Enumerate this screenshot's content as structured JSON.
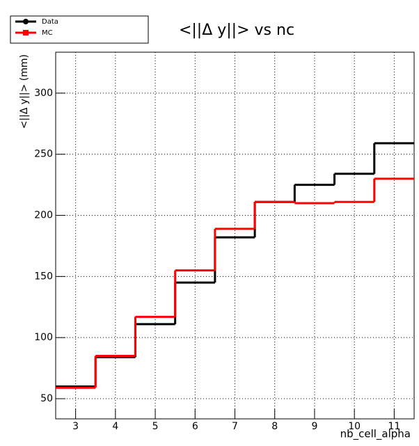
{
  "chart_data": {
    "type": "histogram",
    "title": "<||Δ y||> vs nc",
    "x_label": "nb_cell_alpha",
    "y_label": "<||Δ y||> (mm)",
    "bins": [
      2.5,
      3.5,
      4.5,
      5.5,
      6.5,
      7.5,
      8.5,
      9.5,
      10.5,
      11.5
    ],
    "series": [
      {
        "name": "Data",
        "color": "#000000",
        "values": [
          60,
          84,
          111,
          145,
          182,
          211,
          225,
          234,
          259
        ]
      },
      {
        "name": "MC",
        "color": "#ff0000",
        "values": [
          59,
          85,
          117,
          155,
          189,
          211,
          210,
          211,
          230
        ]
      }
    ],
    "xlim": [
      2.5,
      11.5
    ],
    "ylim": [
      33.5,
      333.5
    ],
    "xticks": [
      3,
      4,
      5,
      6,
      7,
      8,
      9,
      10,
      11
    ],
    "yticks": [
      50,
      100,
      150,
      200,
      250,
      300
    ],
    "grid": true,
    "legend": "top-left"
  }
}
